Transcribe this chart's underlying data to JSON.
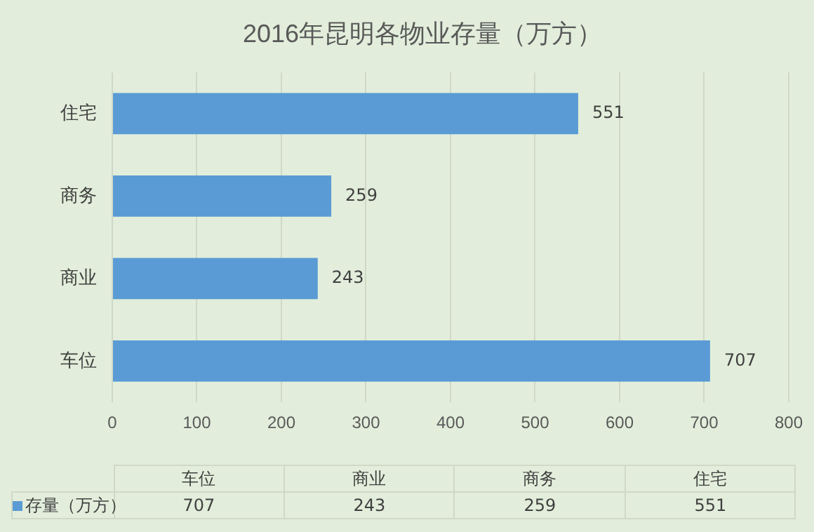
{
  "chart_data": {
    "type": "bar",
    "orientation": "horizontal",
    "title": "2016年昆明各物业存量（万方）",
    "categories": [
      "住宅",
      "商务",
      "商业",
      "车位"
    ],
    "series": [
      {
        "name": "存量（万方）",
        "color": "#5b9bd5",
        "values": [
          551,
          259,
          243,
          707
        ],
        "value_labels": [
          "551",
          "259",
          "243",
          "707"
        ]
      }
    ],
    "xlim": [
      0,
      800
    ],
    "xticks": [
      0,
      100,
      200,
      300,
      400,
      500,
      600,
      700,
      800
    ],
    "grid": "x",
    "data_labels": true
  }
}
